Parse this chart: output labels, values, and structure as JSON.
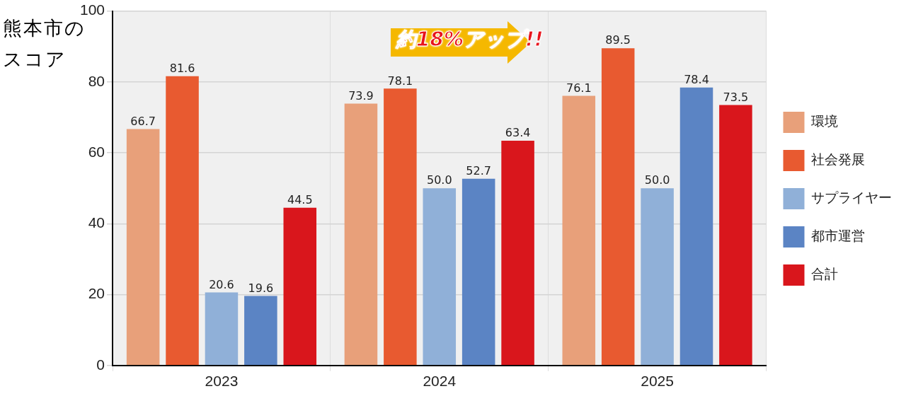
{
  "chart_data": {
    "type": "bar",
    "ylabel": "熊本市のスコア",
    "categories": [
      "2023",
      "2024",
      "2025"
    ],
    "series": [
      {
        "name": "環境",
        "color": "#e8a07a",
        "values": [
          66.7,
          73.9,
          76.1
        ],
        "value_labels": [
          "66.7",
          "73.9",
          "76.1"
        ]
      },
      {
        "name": "社会発展",
        "color": "#e85a30",
        "values": [
          81.6,
          78.1,
          89.5
        ],
        "value_labels": [
          "81.6",
          "78.1",
          "89.5"
        ]
      },
      {
        "name": "サプライヤー",
        "color": "#90b0d8",
        "values": [
          20.6,
          50.0,
          50.0
        ],
        "value_labels": [
          "20.6",
          "50.0",
          "50.0"
        ]
      },
      {
        "name": "都市運営",
        "color": "#5b84c4",
        "values": [
          19.6,
          52.7,
          78.4
        ],
        "value_labels": [
          "19.6",
          "52.7",
          "78.4"
        ]
      },
      {
        "name": "合計",
        "color": "#d9161c",
        "values": [
          44.5,
          63.4,
          73.5
        ],
        "value_labels": [
          "44.5",
          "63.4",
          "73.5"
        ]
      }
    ],
    "ylim": [
      0,
      100
    ],
    "yticks": [
      0,
      20,
      40,
      60,
      80,
      100
    ],
    "grid": true,
    "legend": "right",
    "annotations": [
      "約18%アップ!!"
    ]
  }
}
